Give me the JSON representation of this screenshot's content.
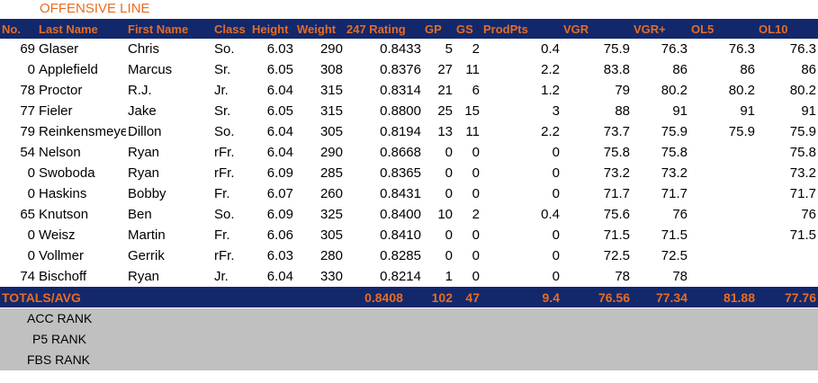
{
  "section_title": "OFFENSIVE LINE",
  "headers": {
    "no": "No.",
    "last": "Last Name",
    "first": "First Name",
    "class": "Class",
    "height": "Height",
    "weight": "Weight",
    "rating": "247 Rating",
    "gp": "GP",
    "gs": "GS",
    "prodpts": "ProdPts",
    "vgr": "VGR",
    "vgrplus": "VGR+",
    "ol5": "OL5",
    "ol10": "OL10"
  },
  "rows": [
    {
      "no": "69",
      "last": "Glaser",
      "first": "Chris",
      "class": "So.",
      "height": "6.03",
      "weight": "290",
      "rating": "0.8433",
      "gp": "5",
      "gs": "2",
      "prodpts": "0.4",
      "vgr": "75.9",
      "vgrplus": "76.3",
      "ol5": "76.3",
      "ol10": "76.3"
    },
    {
      "no": "0",
      "last": "Applefield",
      "first": "Marcus",
      "class": "Sr.",
      "height": "6.05",
      "weight": "308",
      "rating": "0.8376",
      "gp": "27",
      "gs": "11",
      "prodpts": "2.2",
      "vgr": "83.8",
      "vgrplus": "86",
      "ol5": "86",
      "ol10": "86"
    },
    {
      "no": "78",
      "last": "Proctor",
      "first": "R.J.",
      "class": "Jr.",
      "height": "6.04",
      "weight": "315",
      "rating": "0.8314",
      "gp": "21",
      "gs": "6",
      "prodpts": "1.2",
      "vgr": "79",
      "vgrplus": "80.2",
      "ol5": "80.2",
      "ol10": "80.2"
    },
    {
      "no": "77",
      "last": "Fieler",
      "first": "Jake",
      "class": "Sr.",
      "height": "6.05",
      "weight": "315",
      "rating": "0.8800",
      "gp": "25",
      "gs": "15",
      "prodpts": "3",
      "vgr": "88",
      "vgrplus": "91",
      "ol5": "91",
      "ol10": "91"
    },
    {
      "no": "79",
      "last": "Reinkensmeye",
      "first": "Dillon",
      "class": "So.",
      "height": "6.04",
      "weight": "305",
      "rating": "0.8194",
      "gp": "13",
      "gs": "11",
      "prodpts": "2.2",
      "vgr": "73.7",
      "vgrplus": "75.9",
      "ol5": "75.9",
      "ol10": "75.9"
    },
    {
      "no": "54",
      "last": "Nelson",
      "first": "Ryan",
      "class": "rFr.",
      "height": "6.04",
      "weight": "290",
      "rating": "0.8668",
      "gp": "0",
      "gs": "0",
      "prodpts": "0",
      "vgr": "75.8",
      "vgrplus": "75.8",
      "ol5": "",
      "ol10": "75.8"
    },
    {
      "no": "0",
      "last": "Swoboda",
      "first": "Ryan",
      "class": "rFr.",
      "height": "6.09",
      "weight": "285",
      "rating": "0.8365",
      "gp": "0",
      "gs": "0",
      "prodpts": "0",
      "vgr": "73.2",
      "vgrplus": "73.2",
      "ol5": "",
      "ol10": "73.2"
    },
    {
      "no": "0",
      "last": "Haskins",
      "first": "Bobby",
      "class": "Fr.",
      "height": "6.07",
      "weight": "260",
      "rating": "0.8431",
      "gp": "0",
      "gs": "0",
      "prodpts": "0",
      "vgr": "71.7",
      "vgrplus": "71.7",
      "ol5": "",
      "ol10": "71.7"
    },
    {
      "no": "65",
      "last": "Knutson",
      "first": "Ben",
      "class": "So.",
      "height": "6.09",
      "weight": "325",
      "rating": "0.8400",
      "gp": "10",
      "gs": "2",
      "prodpts": "0.4",
      "vgr": "75.6",
      "vgrplus": "76",
      "ol5": "",
      "ol10": "76"
    },
    {
      "no": "0",
      "last": "Weisz",
      "first": "Martin",
      "class": "Fr.",
      "height": "6.06",
      "weight": "305",
      "rating": "0.8410",
      "gp": "0",
      "gs": "0",
      "prodpts": "0",
      "vgr": "71.5",
      "vgrplus": "71.5",
      "ol5": "",
      "ol10": "71.5"
    },
    {
      "no": "0",
      "last": "Vollmer",
      "first": "Gerrik",
      "class": "rFr.",
      "height": "6.03",
      "weight": "280",
      "rating": "0.8285",
      "gp": "0",
      "gs": "0",
      "prodpts": "0",
      "vgr": "72.5",
      "vgrplus": "72.5",
      "ol5": "",
      "ol10": ""
    },
    {
      "no": "74",
      "last": "Bischoff",
      "first": "Ryan",
      "class": "Jr.",
      "height": "6.04",
      "weight": "330",
      "rating": "0.8214",
      "gp": "1",
      "gs": "0",
      "prodpts": "0",
      "vgr": "78",
      "vgrplus": "78",
      "ol5": "",
      "ol10": ""
    }
  ],
  "totals": {
    "label": "TOTALS/AVG",
    "rating": "0.8408",
    "gp": "102",
    "gs": "47",
    "prodpts": "9.4",
    "vgr": "76.56",
    "vgrplus": "77.34",
    "ol5": "81.88",
    "ol10": "77.76"
  },
  "ranks": {
    "acc": "ACC RANK",
    "p5": "P5 RANK",
    "fbs": "FBS RANK"
  },
  "colors": {
    "header_bg": "#13286b",
    "header_text": "#e86c21",
    "rank_bg": "#c0c0c0"
  }
}
